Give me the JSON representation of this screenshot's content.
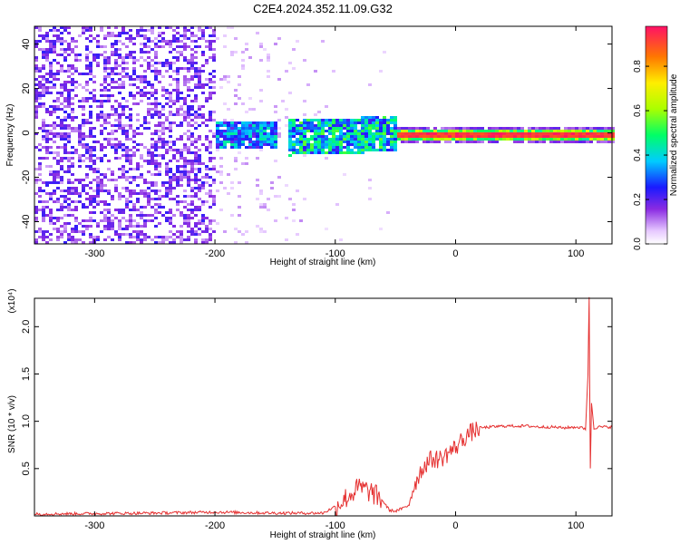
{
  "figure": {
    "title": "C2E4.2024.352.11.09.G32"
  },
  "chart_data": [
    {
      "type": "heatmap",
      "xlabel": "Height of straight line (km)",
      "ylabel": "Frequency (Hz)",
      "xlim": [
        -350,
        130
      ],
      "ylim": [
        -50,
        48
      ],
      "x_ticks": [
        "-300",
        "-200",
        "-100",
        "0",
        "100"
      ],
      "y_ticks": [
        "-40",
        "-20",
        "0",
        "20",
        "40"
      ],
      "colorbar": {
        "label": "Normalized spectral amplitude",
        "range": [
          0,
          0.98
        ],
        "ticks": [
          "0.0",
          "0.2",
          "0.4",
          "0.6",
          "0.8"
        ]
      },
      "regions": [
        {
          "x": [
            -350,
            -200
          ],
          "freq": [
            -50,
            48
          ],
          "level": "0.05-0.25",
          "pattern": "scattered noise"
        },
        {
          "x": [
            -200,
            -110
          ],
          "freq": [
            -50,
            48
          ],
          "level": "0.02-0.1",
          "pattern": "sparse faint noise"
        },
        {
          "x": [
            -200,
            -150
          ],
          "freq": [
            -6,
            6
          ],
          "level": "0.2-0.5",
          "pattern": "signal band"
        },
        {
          "x": [
            -140,
            -50
          ],
          "freq": [
            -8,
            8
          ],
          "level": "0.3-0.6",
          "pattern": "signal band"
        },
        {
          "x": [
            -50,
            130
          ],
          "freq": [
            -2.5,
            2.5
          ],
          "level": "0.6-1.0",
          "pattern": "narrow carrier line"
        }
      ],
      "grid": false
    },
    {
      "type": "line",
      "xlabel": "Height of straight line (km)",
      "ylabel": "SNR (10 * v/v)",
      "y_multiplier": "(x10⁴)",
      "xlim": [
        -350,
        130
      ],
      "ylim": [
        0,
        2.3
      ],
      "x_ticks": [
        "-300",
        "-200",
        "-100",
        "0",
        "100"
      ],
      "y_ticks": [
        "0.5",
        "1.0",
        "1.5",
        "2.0"
      ],
      "series": [
        {
          "color": "#e53030",
          "x": [
            -350,
            -300,
            -250,
            -200,
            -150,
            -110,
            -100,
            -90,
            -80,
            -70,
            -60,
            -55,
            -50,
            -40,
            -35,
            -30,
            -25,
            -20,
            -15,
            -10,
            -5,
            0,
            5,
            10,
            20,
            30,
            40,
            50,
            60,
            70,
            80,
            90,
            100,
            105,
            108,
            110,
            111,
            112,
            113,
            115,
            120,
            130
          ],
          "y": [
            0.02,
            0.025,
            0.03,
            0.04,
            0.03,
            0.03,
            0.1,
            0.2,
            0.3,
            0.25,
            0.15,
            0.06,
            0.05,
            0.1,
            0.3,
            0.45,
            0.55,
            0.6,
            0.6,
            0.62,
            0.68,
            0.72,
            0.8,
            0.86,
            0.93,
            0.94,
            0.95,
            0.95,
            0.95,
            0.94,
            0.94,
            0.93,
            0.94,
            0.93,
            0.92,
            1.5,
            2.3,
            0.5,
            1.2,
            0.93,
            0.94,
            0.94
          ]
        }
      ],
      "grid": false
    }
  ]
}
